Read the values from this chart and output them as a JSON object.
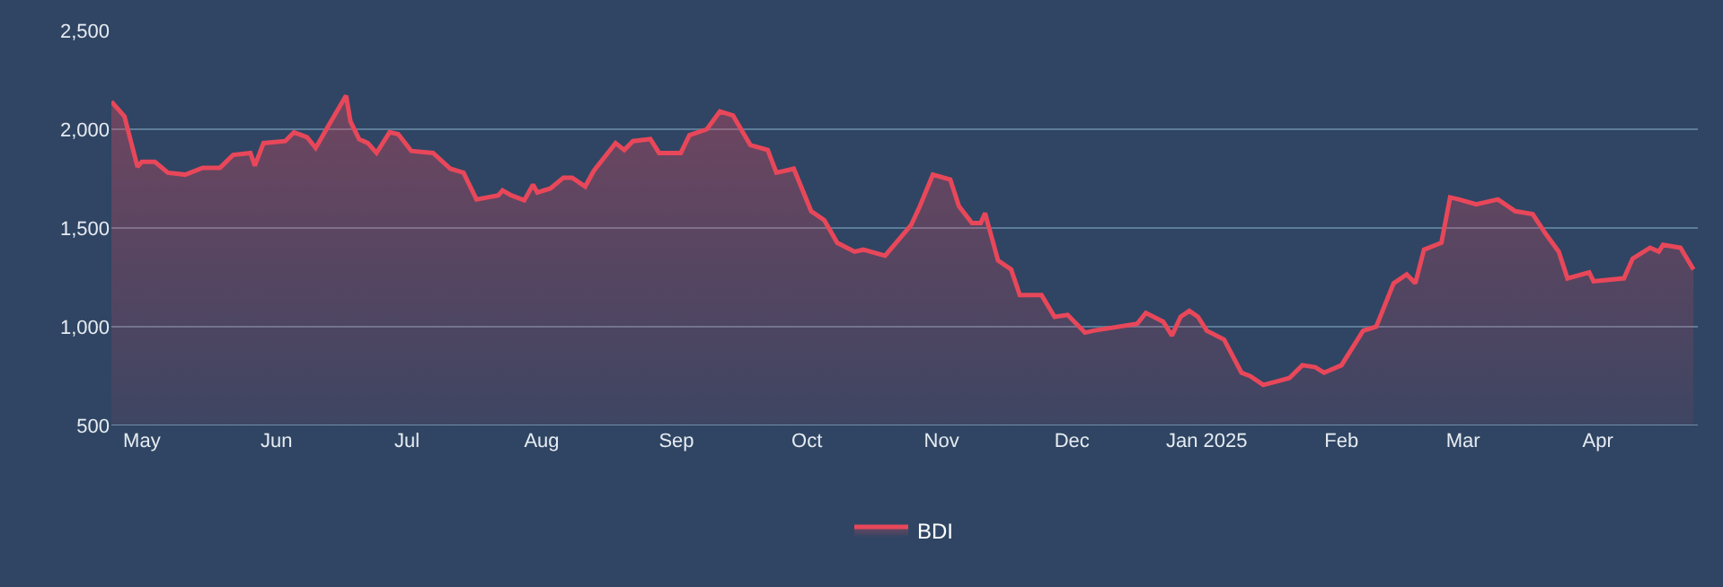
{
  "chart_data": {
    "type": "area",
    "x": [
      "2024-04-24",
      "2024-04-27",
      "2024-04-30",
      "2024-05-01",
      "2024-05-04",
      "2024-05-07",
      "2024-05-11",
      "2024-05-15",
      "2024-05-19",
      "2024-05-22",
      "2024-05-26",
      "2024-05-27",
      "2024-05-29",
      "2024-06-03",
      "2024-06-05",
      "2024-06-08",
      "2024-06-10",
      "2024-06-13",
      "2024-06-17",
      "2024-06-18",
      "2024-06-20",
      "2024-06-22",
      "2024-06-24",
      "2024-06-27",
      "2024-06-29",
      "2024-07-02",
      "2024-07-07",
      "2024-07-11",
      "2024-07-14",
      "2024-07-17",
      "2024-07-22",
      "2024-07-23",
      "2024-07-25",
      "2024-07-28",
      "2024-07-30",
      "2024-07-31",
      "2024-08-03",
      "2024-08-06",
      "2024-08-08",
      "2024-08-11",
      "2024-08-13",
      "2024-08-18",
      "2024-08-20",
      "2024-08-22",
      "2024-08-26",
      "2024-08-28",
      "2024-09-02",
      "2024-09-04",
      "2024-09-08",
      "2024-09-11",
      "2024-09-14",
      "2024-09-18",
      "2024-09-22",
      "2024-09-24",
      "2024-09-28",
      "2024-10-02",
      "2024-10-05",
      "2024-10-08",
      "2024-10-12",
      "2024-10-14",
      "2024-10-19",
      "2024-10-25",
      "2024-10-27",
      "2024-10-30",
      "2024-11-03",
      "2024-11-05",
      "2024-11-08",
      "2024-11-10",
      "2024-11-11",
      "2024-11-14",
      "2024-11-17",
      "2024-11-19",
      "2024-11-24",
      "2024-11-27",
      "2024-11-30",
      "2024-12-04",
      "2024-12-06",
      "2024-12-16",
      "2024-12-18",
      "2024-12-22",
      "2024-12-24",
      "2024-12-26",
      "2024-12-28",
      "2024-12-30",
      "2025-01-01",
      "2025-01-05",
      "2025-01-09",
      "2025-01-11",
      "2025-01-14",
      "2025-01-17",
      "2025-01-20",
      "2025-01-23",
      "2025-01-26",
      "2025-01-28",
      "2025-02-01",
      "2025-02-06",
      "2025-02-09",
      "2025-02-13",
      "2025-02-16",
      "2025-02-18",
      "2025-02-20",
      "2025-02-24",
      "2025-02-26",
      "2025-02-28",
      "2025-03-04",
      "2025-03-09",
      "2025-03-13",
      "2025-03-17",
      "2025-03-20",
      "2025-03-23",
      "2025-03-25",
      "2025-03-30",
      "2025-03-31",
      "2025-04-07",
      "2025-04-09",
      "2025-04-13",
      "2025-04-15",
      "2025-04-16",
      "2025-04-20",
      "2025-04-23"
    ],
    "series": [
      {
        "name": "BDI",
        "color": "#e8475a",
        "values": [
          2140,
          2065,
          1810,
          1835,
          1835,
          1780,
          1770,
          1805,
          1805,
          1870,
          1880,
          1815,
          1930,
          1940,
          1985,
          1960,
          1905,
          2020,
          2170,
          2040,
          1950,
          1930,
          1880,
          1985,
          1975,
          1890,
          1880,
          1800,
          1780,
          1645,
          1665,
          1690,
          1665,
          1640,
          1720,
          1680,
          1700,
          1755,
          1755,
          1710,
          1790,
          1930,
          1895,
          1940,
          1950,
          1880,
          1880,
          1970,
          2000,
          2090,
          2070,
          1920,
          1895,
          1780,
          1800,
          1585,
          1540,
          1425,
          1380,
          1390,
          1360,
          1515,
          1610,
          1770,
          1745,
          1610,
          1525,
          1525,
          1575,
          1335,
          1290,
          1160,
          1160,
          1050,
          1060,
          970,
          980,
          1015,
          1070,
          1025,
          955,
          1050,
          1080,
          1050,
          980,
          935,
          767,
          750,
          705,
          722,
          740,
          805,
          795,
          767,
          805,
          980,
          1000,
          1220,
          1265,
          1220,
          1390,
          1425,
          1655,
          1645,
          1620,
          1645,
          1585,
          1570,
          1470,
          1380,
          1245,
          1275,
          1230,
          1245,
          1345,
          1400,
          1380,
          1415,
          1400,
          1290
        ]
      }
    ],
    "xlim": [
      "2024-04-24",
      "2025-04-24"
    ],
    "xticks": [
      {
        "value": "2024-05-01",
        "label": "May"
      },
      {
        "value": "2024-06-01",
        "label": "Jun"
      },
      {
        "value": "2024-07-01",
        "label": "Jul"
      },
      {
        "value": "2024-08-01",
        "label": "Aug"
      },
      {
        "value": "2024-09-01",
        "label": "Sep"
      },
      {
        "value": "2024-10-01",
        "label": "Oct"
      },
      {
        "value": "2024-11-01",
        "label": "Nov"
      },
      {
        "value": "2024-12-01",
        "label": "Dec"
      },
      {
        "value": "2025-01-01",
        "label": "Jan 2025"
      },
      {
        "value": "2025-02-01",
        "label": "Feb"
      },
      {
        "value": "2025-03-01",
        "label": "Mar"
      },
      {
        "value": "2025-04-01",
        "label": "Apr"
      }
    ],
    "ylim": [
      500,
      2500
    ],
    "yticks": [
      {
        "value": 500,
        "label": "500"
      },
      {
        "value": 1000,
        "label": "1,000"
      },
      {
        "value": 1500,
        "label": "1,500"
      },
      {
        "value": 2000,
        "label": "2,000"
      },
      {
        "value": 2500,
        "label": "2,500"
      }
    ],
    "grid": "y",
    "legend": "bottom",
    "marker": "none",
    "line_style": "solid"
  }
}
